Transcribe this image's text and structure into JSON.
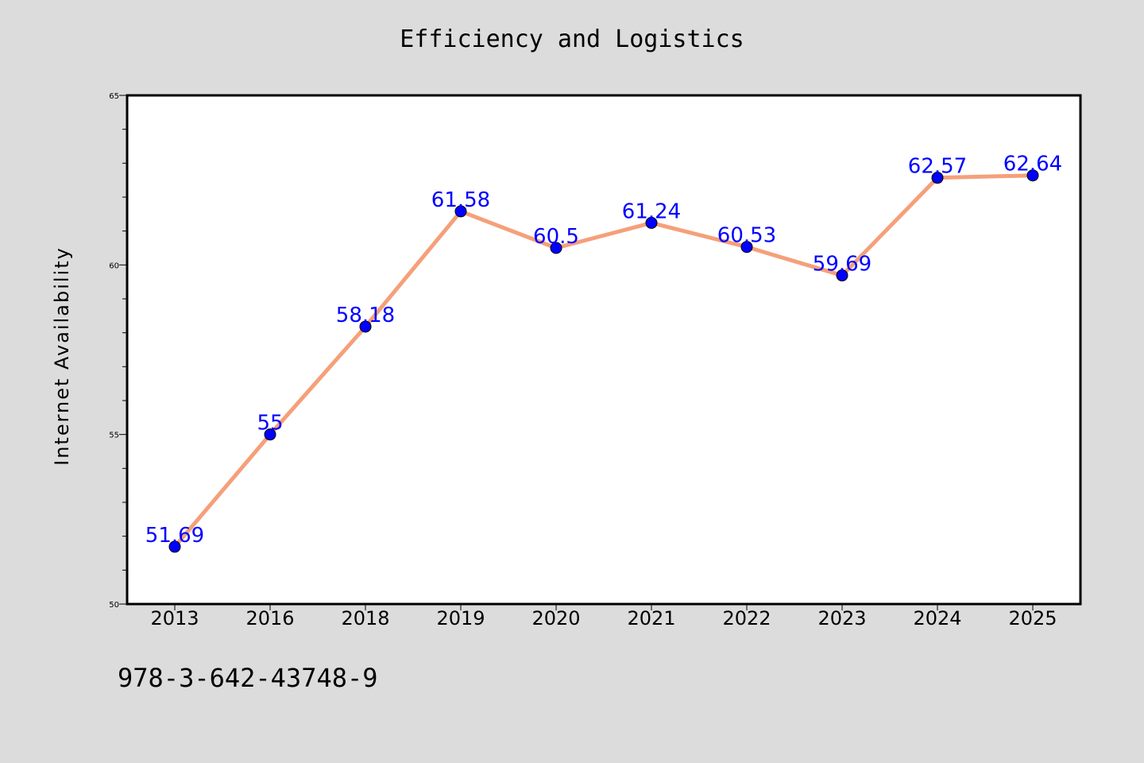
{
  "title": "Efficiency and Logistics",
  "footer": "978-3-642-43748-9",
  "colors": {
    "background": "#dcdcdc",
    "plot_bg": "#ffffff",
    "line": "#f5a07a",
    "marker": "#0000ff",
    "label": "#0000ff"
  },
  "chart_data": {
    "type": "line",
    "title": "Efficiency and Logistics",
    "xlabel": "",
    "ylabel": "Internet Availability",
    "categories": [
      "2013",
      "2016",
      "2018",
      "2019",
      "2020",
      "2021",
      "2022",
      "2023",
      "2024",
      "2025"
    ],
    "series": [
      {
        "values": [
          51.69,
          55,
          58.18,
          61.58,
          60.5,
          61.24,
          60.53,
          59.69,
          62.57,
          62.64
        ],
        "labels": [
          "51.69",
          "55",
          "58.18",
          "61.58",
          "60.5",
          "61.24",
          "60.53",
          "59.69",
          "62.57",
          "62.64"
        ]
      }
    ],
    "ylim": [
      50,
      65
    ],
    "yticks": [
      "50",
      "55",
      "60",
      "65"
    ],
    "grid": false,
    "legend": "none"
  }
}
